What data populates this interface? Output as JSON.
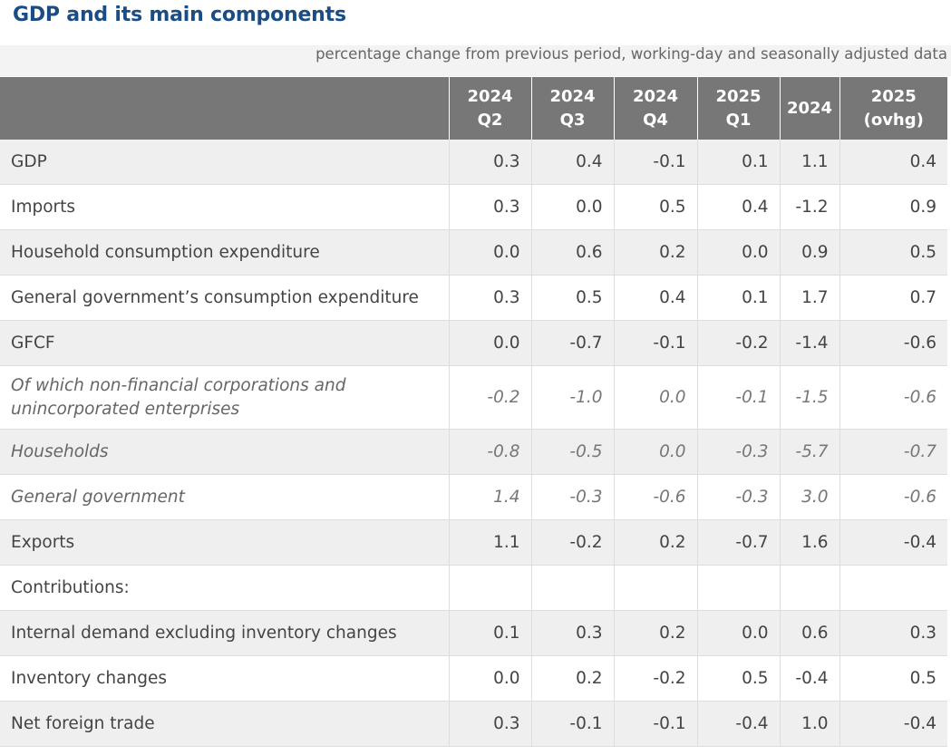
{
  "header": {
    "title": "GDP and its main components",
    "subtitle": "percentage change from previous period, working-day and seasonally adjusted data"
  },
  "table": {
    "columns": [
      {
        "line1": "2024",
        "line2": "Q2"
      },
      {
        "line1": "2024",
        "line2": "Q3"
      },
      {
        "line1": "2024",
        "line2": "Q4"
      },
      {
        "line1": "2025",
        "line2": "Q1"
      },
      {
        "line1": "2024",
        "line2": ""
      },
      {
        "line1": "2025",
        "line2": "(ovhg)"
      }
    ],
    "rows": [
      {
        "label": "GDP",
        "values": [
          "0.3",
          "0.4",
          "-0.1",
          "0.1",
          "1.1",
          "0.4"
        ]
      },
      {
        "label": "Imports",
        "values": [
          "0.3",
          "0.0",
          "0.5",
          "0.4",
          "-1.2",
          "0.9"
        ]
      },
      {
        "label": "Household consumption expenditure",
        "values": [
          "0.0",
          "0.6",
          "0.2",
          "0.0",
          "0.9",
          "0.5"
        ]
      },
      {
        "label": "General government’s consumption expenditure",
        "values": [
          "0.3",
          "0.5",
          "0.4",
          "0.1",
          "1.7",
          "0.7"
        ]
      },
      {
        "label": "GFCF",
        "values": [
          "0.0",
          "-0.7",
          "-0.1",
          "-0.2",
          "-1.4",
          "-0.6"
        ]
      },
      {
        "label": "Of which non-financial corporations and unincorporated enterprises",
        "values": [
          "-0.2",
          "-1.0",
          "0.0",
          "-0.1",
          "-1.5",
          "-0.6"
        ]
      },
      {
        "label": "Households",
        "values": [
          "-0.8",
          "-0.5",
          "0.0",
          "-0.3",
          "-5.7",
          "-0.7"
        ]
      },
      {
        "label": "General government",
        "values": [
          "1.4",
          "-0.3",
          "-0.6",
          "-0.3",
          "3.0",
          "-0.6"
        ]
      },
      {
        "label": "Exports",
        "values": [
          "1.1",
          "-0.2",
          "0.2",
          "-0.7",
          "1.6",
          "-0.4"
        ]
      },
      {
        "label": "Contributions:",
        "values": [
          "",
          "",
          "",
          "",
          "",
          ""
        ]
      },
      {
        "label": "Internal demand excluding inventory changes",
        "values": [
          "0.1",
          "0.3",
          "0.2",
          "0.0",
          "0.6",
          "0.3"
        ]
      },
      {
        "label": "Inventory changes",
        "values": [
          "0.0",
          "0.2",
          "-0.2",
          "0.5",
          "-0.4",
          "0.5"
        ]
      },
      {
        "label": "Net foreign trade",
        "values": [
          "0.3",
          "-0.1",
          "-0.1",
          "-0.4",
          "1.0",
          "-0.4"
        ]
      }
    ]
  }
}
